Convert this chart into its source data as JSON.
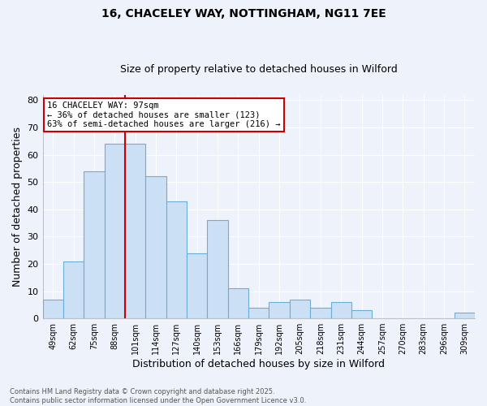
{
  "title1": "16, CHACELEY WAY, NOTTINGHAM, NG11 7EE",
  "title2": "Size of property relative to detached houses in Wilford",
  "xlabel": "Distribution of detached houses by size in Wilford",
  "ylabel": "Number of detached properties",
  "categories": [
    "49sqm",
    "62sqm",
    "75sqm",
    "88sqm",
    "101sqm",
    "114sqm",
    "127sqm",
    "140sqm",
    "153sqm",
    "166sqm",
    "179sqm",
    "192sqm",
    "205sqm",
    "218sqm",
    "231sqm",
    "244sqm",
    "257sqm",
    "270sqm",
    "283sqm",
    "296sqm",
    "309sqm"
  ],
  "values": [
    7,
    21,
    54,
    64,
    64,
    52,
    43,
    24,
    36,
    11,
    4,
    6,
    7,
    4,
    6,
    3,
    0,
    0,
    0,
    0,
    2
  ],
  "bar_color": "#cce0f5",
  "bar_edge_color": "#6aaed6",
  "vline_x_data": 3.5,
  "vline_color": "#cc0000",
  "annotation_text": "16 CHACELEY WAY: 97sqm\n← 36% of detached houses are smaller (123)\n63% of semi-detached houses are larger (216) →",
  "annotation_box_color": "#ffffff",
  "annotation_box_edge": "#cc0000",
  "ylim": [
    0,
    82
  ],
  "yticks": [
    0,
    10,
    20,
    30,
    40,
    50,
    60,
    70,
    80
  ],
  "footnote": "Contains HM Land Registry data © Crown copyright and database right 2025.\nContains public sector information licensed under the Open Government Licence v3.0.",
  "background_color": "#eef2fa",
  "grid_color": "#ffffff",
  "title1_fontsize": 10,
  "title2_fontsize": 9
}
